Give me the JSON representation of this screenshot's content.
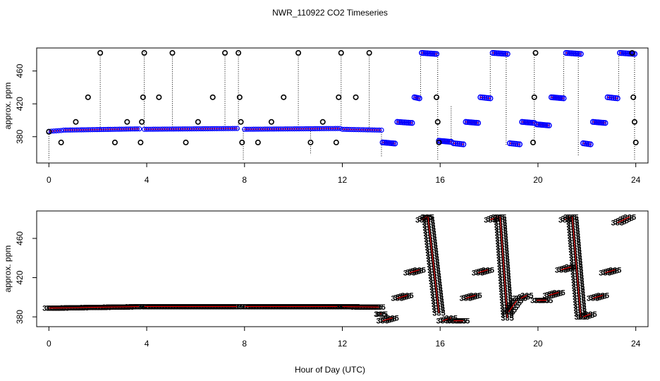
{
  "chart_data": {
    "title": "NWR_110922  CO2 Timeseries",
    "xlabel": "Hour of Day (UTC)",
    "xlim": [
      -0.5,
      24.5
    ],
    "xticks": [
      0,
      4,
      8,
      12,
      16,
      20,
      24
    ],
    "xtick_labels": [
      "0",
      "4",
      "8",
      "12",
      "16",
      "20",
      "24"
    ],
    "colors": {
      "background": "#ffffff",
      "frame": "#000000",
      "outlier_marker": "#000000",
      "series_line": "#ff0000",
      "series_marker": "#0000ff",
      "fill_marker": "#00cccc",
      "stem_line": "#000000",
      "text_marker": "#009933"
    },
    "panels": [
      {
        "type": "scatter",
        "ylabel": "approx. ppm",
        "ylim": [
          348,
          488
        ],
        "yticks": [
          380,
          420,
          460
        ],
        "ytick_labels": [
          "380",
          "420",
          "460"
        ],
        "flat_segments": [
          {
            "x0": 0.0,
            "x1": 0.5,
            "y0": 386.5,
            "y1": 387.5
          },
          {
            "x0": 0.6,
            "x1": 3.7,
            "y0": 388.0,
            "y1": 389.5
          },
          {
            "x0": 3.9,
            "x1": 7.7,
            "y0": 389.0,
            "y1": 390.0
          },
          {
            "x0": 8.0,
            "x1": 11.9,
            "y0": 389.0,
            "y1": 390.0
          },
          {
            "x0": 12.0,
            "x1": 13.6,
            "y0": 389.0,
            "y1": 388.0
          }
        ],
        "step_segments": [
          {
            "x0": 13.65,
            "x1": 14.15,
            "y": 373
          },
          {
            "x0": 14.25,
            "x1": 14.85,
            "y": 398
          },
          {
            "x0": 14.95,
            "x1": 15.15,
            "y": 428
          },
          {
            "x0": 15.25,
            "x1": 15.85,
            "y": 482
          },
          {
            "x0": 15.95,
            "x1": 16.45,
            "y": 375
          },
          {
            "x0": 16.55,
            "x1": 16.95,
            "y": 372
          },
          {
            "x0": 17.05,
            "x1": 17.55,
            "y": 398
          },
          {
            "x0": 17.65,
            "x1": 18.05,
            "y": 428
          },
          {
            "x0": 18.15,
            "x1": 18.75,
            "y": 482
          },
          {
            "x0": 18.85,
            "x1": 19.25,
            "y": 372
          },
          {
            "x0": 19.35,
            "x1": 19.85,
            "y": 398
          },
          {
            "x0": 19.95,
            "x1": 20.45,
            "y": 395
          },
          {
            "x0": 20.55,
            "x1": 21.05,
            "y": 428
          },
          {
            "x0": 21.15,
            "x1": 21.75,
            "y": 482
          },
          {
            "x0": 21.85,
            "x1": 22.15,
            "y": 372
          },
          {
            "x0": 22.25,
            "x1": 22.75,
            "y": 398
          },
          {
            "x0": 22.85,
            "x1": 23.25,
            "y": 428
          },
          {
            "x0": 23.35,
            "x1": 23.95,
            "y": 482
          }
        ],
        "outliers": [
          {
            "x": 0.0,
            "y": 386
          },
          {
            "x": 0.5,
            "y": 373
          },
          {
            "x": 1.1,
            "y": 398
          },
          {
            "x": 1.6,
            "y": 428
          },
          {
            "x": 2.1,
            "y": 482
          },
          {
            "x": 2.7,
            "y": 373
          },
          {
            "x": 3.2,
            "y": 398
          },
          {
            "x": 3.75,
            "y": 373
          },
          {
            "x": 3.8,
            "y": 398
          },
          {
            "x": 3.85,
            "y": 428
          },
          {
            "x": 3.9,
            "y": 482
          },
          {
            "x": 4.5,
            "y": 428
          },
          {
            "x": 5.05,
            "y": 482
          },
          {
            "x": 5.6,
            "y": 373
          },
          {
            "x": 6.1,
            "y": 398
          },
          {
            "x": 6.7,
            "y": 428
          },
          {
            "x": 7.2,
            "y": 482
          },
          {
            "x": 7.75,
            "y": 482
          },
          {
            "x": 7.8,
            "y": 428
          },
          {
            "x": 7.85,
            "y": 398
          },
          {
            "x": 7.9,
            "y": 373
          },
          {
            "x": 8.55,
            "y": 373
          },
          {
            "x": 9.1,
            "y": 398
          },
          {
            "x": 9.6,
            "y": 428
          },
          {
            "x": 10.2,
            "y": 482
          },
          {
            "x": 10.7,
            "y": 373
          },
          {
            "x": 11.2,
            "y": 398
          },
          {
            "x": 11.75,
            "y": 373
          },
          {
            "x": 11.85,
            "y": 428
          },
          {
            "x": 11.95,
            "y": 482
          },
          {
            "x": 12.55,
            "y": 428
          },
          {
            "x": 13.1,
            "y": 482
          },
          {
            "x": 15.85,
            "y": 428
          },
          {
            "x": 15.9,
            "y": 398
          },
          {
            "x": 15.95,
            "y": 373
          },
          {
            "x": 19.8,
            "y": 373
          },
          {
            "x": 19.85,
            "y": 428
          },
          {
            "x": 19.9,
            "y": 482
          },
          {
            "x": 23.85,
            "y": 482
          },
          {
            "x": 23.9,
            "y": 428
          },
          {
            "x": 23.95,
            "y": 398
          },
          {
            "x": 24.0,
            "y": 373
          }
        ],
        "stems": [
          {
            "x": 0.0,
            "y0": 386,
            "y1": 352
          },
          {
            "x": 2.1,
            "y0": 389,
            "y1": 482
          },
          {
            "x": 3.9,
            "y0": 389,
            "y1": 486
          },
          {
            "x": 5.05,
            "y0": 389,
            "y1": 482
          },
          {
            "x": 7.2,
            "y0": 389,
            "y1": 482
          },
          {
            "x": 7.75,
            "y0": 389,
            "y1": 486
          },
          {
            "x": 7.95,
            "y0": 389,
            "y1": 352
          },
          {
            "x": 10.2,
            "y0": 389,
            "y1": 482
          },
          {
            "x": 10.7,
            "y0": 389,
            "y1": 358
          },
          {
            "x": 11.95,
            "y0": 389,
            "y1": 482
          },
          {
            "x": 13.1,
            "y0": 389,
            "y1": 482
          },
          {
            "x": 13.6,
            "y0": 388,
            "y1": 356
          },
          {
            "x": 15.2,
            "y0": 428,
            "y1": 482
          },
          {
            "x": 15.9,
            "y0": 482,
            "y1": 352
          },
          {
            "x": 16.45,
            "y0": 375,
            "y1": 418
          },
          {
            "x": 18.05,
            "y0": 428,
            "y1": 482
          },
          {
            "x": 18.7,
            "y0": 482,
            "y1": 370
          },
          {
            "x": 19.85,
            "y0": 373,
            "y1": 486
          },
          {
            "x": 21.05,
            "y0": 428,
            "y1": 482
          },
          {
            "x": 21.65,
            "y0": 482,
            "y1": 356
          },
          {
            "x": 23.3,
            "y0": 428,
            "y1": 482
          },
          {
            "x": 23.95,
            "y0": 482,
            "y1": 352
          }
        ]
      },
      {
        "type": "line",
        "ylabel": "approx. ppm",
        "ylim": [
          370,
          488
        ],
        "yticks": [
          380,
          420,
          460
        ],
        "ytick_labels": [
          "380",
          "420",
          "460"
        ],
        "point_label": "385",
        "segments": [
          {
            "x0": 0.0,
            "x1": 3.7,
            "y0": 389.0,
            "y1": 390.5
          },
          {
            "x0": 3.9,
            "x1": 7.7,
            "y0": 390.5,
            "y1": 390.5
          },
          {
            "x0": 8.0,
            "x1": 11.9,
            "y0": 390.5,
            "y1": 390.5
          },
          {
            "x0": 12.0,
            "x1": 13.5,
            "y0": 390.5,
            "y1": 390.0
          },
          {
            "x0": 13.55,
            "x1": 13.6,
            "y0": 383.0,
            "y1": 383.0
          },
          {
            "x0": 13.65,
            "x1": 14.05,
            "y0": 376.0,
            "y1": 379.0
          },
          {
            "x0": 14.25,
            "x1": 14.65,
            "y0": 399.0,
            "y1": 402.0
          },
          {
            "x0": 14.75,
            "x1": 15.15,
            "y0": 425.0,
            "y1": 428.0
          },
          {
            "x0": 15.25,
            "x1": 15.45,
            "y0": 479.0,
            "y1": 482.0
          },
          {
            "x0": 15.5,
            "x1": 15.95,
            "y0": 482.0,
            "y1": 384.0
          },
          {
            "x0": 16.1,
            "x1": 16.45,
            "y0": 376.0,
            "y1": 379.0
          },
          {
            "x0": 16.55,
            "x1": 16.95,
            "y0": 376.0,
            "y1": 376.0
          },
          {
            "x0": 17.05,
            "x1": 17.45,
            "y0": 399.0,
            "y1": 402.0
          },
          {
            "x0": 17.55,
            "x1": 17.95,
            "y0": 425.0,
            "y1": 428.0
          },
          {
            "x0": 18.05,
            "x1": 18.35,
            "y0": 479.0,
            "y1": 482.0
          },
          {
            "x0": 18.45,
            "x1": 18.75,
            "y0": 482.0,
            "y1": 379.0
          },
          {
            "x0": 18.8,
            "x1": 19.2,
            "y0": 385.0,
            "y1": 399.0
          },
          {
            "x0": 19.3,
            "x1": 19.55,
            "y0": 399.0,
            "y1": 402.0
          },
          {
            "x0": 19.95,
            "x1": 20.35,
            "y0": 397.0,
            "y1": 397.0
          },
          {
            "x0": 20.45,
            "x1": 20.85,
            "y0": 402.0,
            "y1": 405.0
          },
          {
            "x0": 20.95,
            "x1": 21.35,
            "y0": 428.0,
            "y1": 431.0
          },
          {
            "x0": 21.1,
            "x1": 21.3,
            "y0": 479.0,
            "y1": 482.0
          },
          {
            "x0": 21.4,
            "x1": 21.75,
            "y0": 482.0,
            "y1": 380.0
          },
          {
            "x0": 21.85,
            "x1": 22.15,
            "y0": 380.0,
            "y1": 383.0
          },
          {
            "x0": 22.25,
            "x1": 22.65,
            "y0": 399.0,
            "y1": 402.0
          },
          {
            "x0": 22.75,
            "x1": 23.15,
            "y0": 425.0,
            "y1": 428.0
          },
          {
            "x0": 23.25,
            "x1": 23.75,
            "y0": 476.0,
            "y1": 482.0
          }
        ]
      }
    ]
  }
}
